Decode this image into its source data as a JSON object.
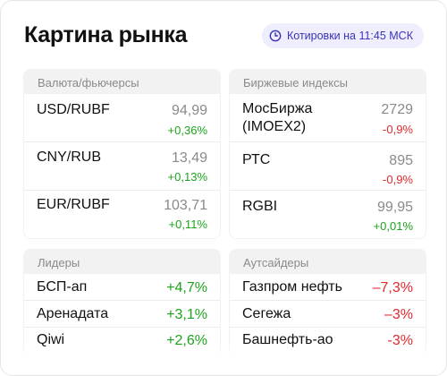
{
  "header": {
    "title": "Картина рынка",
    "quotes_badge": "Котировки на 11:45 МСК"
  },
  "currency": {
    "heading": "Валюта/фьючерсы",
    "rows": [
      {
        "name": "USD/RUBF",
        "value": "94,99",
        "change": "+0,36%"
      },
      {
        "name": "CNY/RUB",
        "value": "13,49",
        "change": "+0,13%"
      },
      {
        "name": "EUR/RUBF",
        "value": "103,71",
        "change": "+0,11%"
      }
    ]
  },
  "indices": {
    "heading": "Биржевые индексы",
    "rows": [
      {
        "name": "МосБиржа",
        "name2": "(IMOEX2)",
        "value": "2729",
        "change": "-0,9%"
      },
      {
        "name": "РТС",
        "value": "895",
        "change": "-0,9%"
      },
      {
        "name": "RGBI",
        "value": "99,95",
        "change": "+0,01%"
      }
    ]
  },
  "leaders": {
    "heading": "Лидеры",
    "rows": [
      {
        "name": "БСП-ап",
        "change": "+4,7%"
      },
      {
        "name": "Аренадата",
        "change": "+3,1%"
      },
      {
        "name": "Qiwi",
        "change": "+2,6%"
      }
    ]
  },
  "outsiders": {
    "heading": "Аутсайдеры",
    "rows": [
      {
        "name": "Газпром нефть",
        "change": "–7,3%"
      },
      {
        "name": "Сегежа",
        "change": "–3%"
      },
      {
        "name": "Башнефть-ао",
        "change": "-3%"
      }
    ]
  },
  "colors": {
    "up": "#1ba31b",
    "down": "#e0282e",
    "badge_bg": "#efeeff",
    "badge_text": "#3b34b8",
    "panel_bg": "#f2f2f2"
  },
  "icons": {
    "badge_icon": "clock-icon"
  }
}
